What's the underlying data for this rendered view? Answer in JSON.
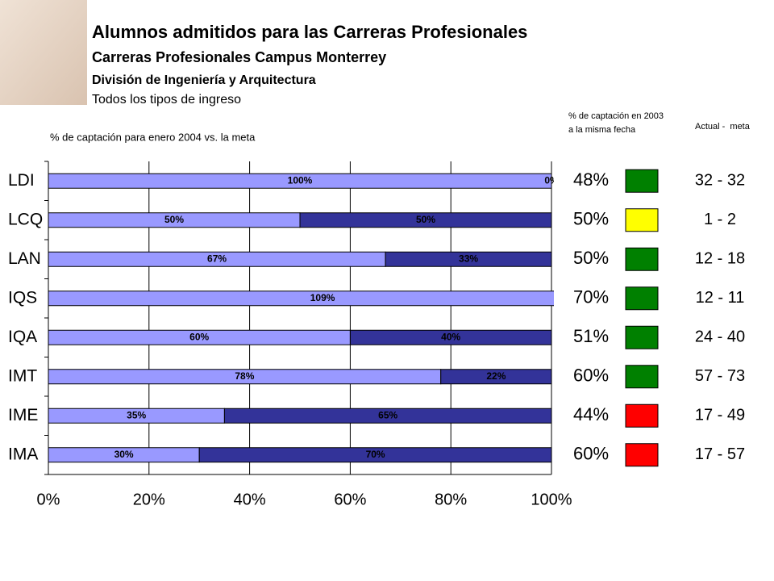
{
  "chart_data": {
    "type": "stacked_barh",
    "title": "Alumnos admitidos para las Carreras Profesionales",
    "subtitle": "Carreras Profesionales Campus Monterrey",
    "division": "División de Ingeniería y Arquitectura",
    "ingreso": "Todos los tipos de ingreso",
    "caption": "% de captación para enero 2004 vs. la meta",
    "categories": [
      "LDI",
      "LCQ",
      "LAN",
      "IQS",
      "IQA",
      "IMT",
      "IME",
      "IMA"
    ],
    "series": [
      {
        "color": "#9999ff",
        "values": [
          100,
          50,
          67,
          109,
          60,
          78,
          35,
          30
        ],
        "value_labels": [
          "100%",
          "50%",
          "67%",
          "109%",
          "60%",
          "78%",
          "35%",
          "30%"
        ]
      },
      {
        "color": "#333399",
        "values": [
          0,
          50,
          33,
          null,
          40,
          22,
          65,
          70
        ],
        "value_labels": [
          "0%",
          "50%",
          "33%",
          null,
          "40%",
          "22%",
          "65%",
          "70%"
        ]
      }
    ],
    "xlim": [
      0,
      100
    ],
    "xticks": [
      {
        "value": 0,
        "label": "0%"
      },
      {
        "value": 20,
        "label": "20%"
      },
      {
        "value": 40,
        "label": "40%"
      },
      {
        "value": 60,
        "label": "60%"
      },
      {
        "value": 80,
        "label": "80%"
      },
      {
        "value": 100,
        "label": "100%"
      }
    ],
    "grid": true
  },
  "side_table": {
    "header_2003": [
      "% de captación en 2003",
      "a la misma fecha"
    ],
    "header_actual": "Actual -  meta",
    "rows": [
      {
        "pct": 48,
        "pct_label": "48%",
        "status": "#008000",
        "actual_meta": "32 - 32"
      },
      {
        "pct": 50,
        "pct_label": "50%",
        "status": "#ffff00",
        "actual_meta": "1 - 2"
      },
      {
        "pct": 50,
        "pct_label": "50%",
        "status": "#008000",
        "actual_meta": "12 - 18"
      },
      {
        "pct": 70,
        "pct_label": "70%",
        "status": "#008000",
        "actual_meta": "12 - 11"
      },
      {
        "pct": 51,
        "pct_label": "51%",
        "status": "#008000",
        "actual_meta": "24 - 40"
      },
      {
        "pct": 60,
        "pct_label": "60%",
        "status": "#008000",
        "actual_meta": "57 - 73"
      },
      {
        "pct": 44,
        "pct_label": "44%",
        "status": "#ff0000",
        "actual_meta": "17 - 49"
      },
      {
        "pct": 60,
        "pct_label": "60%",
        "status": "#ff0000",
        "actual_meta": "17 - 57"
      }
    ]
  }
}
